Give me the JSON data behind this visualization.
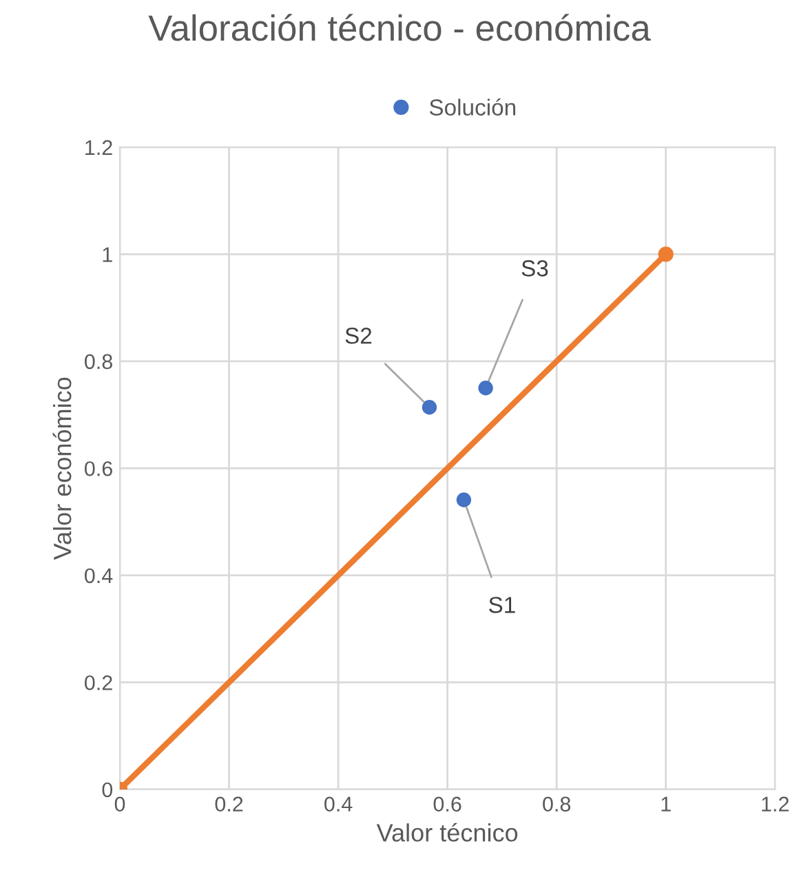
{
  "chart_data": {
    "type": "scatter",
    "title": "Valoración técnico - económica",
    "xlabel": "Valor técnico",
    "ylabel": "Valor económico",
    "xlim": [
      0,
      1.2
    ],
    "ylim": [
      0,
      1.2
    ],
    "xticks": [
      0,
      0.2,
      0.4,
      0.6,
      0.8,
      1,
      1.2
    ],
    "yticks": [
      0,
      0.2,
      0.4,
      0.6,
      0.8,
      1,
      1.2
    ],
    "series": [
      {
        "name": "Solución",
        "color": "#4472c4",
        "x": [
          0.63,
          0.567,
          0.67
        ],
        "values": [
          0.541,
          0.714,
          0.75
        ]
      },
      {
        "type": "line",
        "color": "#ed7d31",
        "x": [
          0,
          1
        ],
        "values": [
          0,
          1
        ]
      }
    ],
    "annotations": [
      {
        "text": "S1",
        "x": 0.63,
        "y": 0.541
      },
      {
        "text": "S2",
        "x": 0.567,
        "y": 0.714
      },
      {
        "text": "S3",
        "x": 0.67,
        "y": 0.75
      }
    ],
    "grid": true,
    "legend": "top",
    "marker": "circle"
  }
}
